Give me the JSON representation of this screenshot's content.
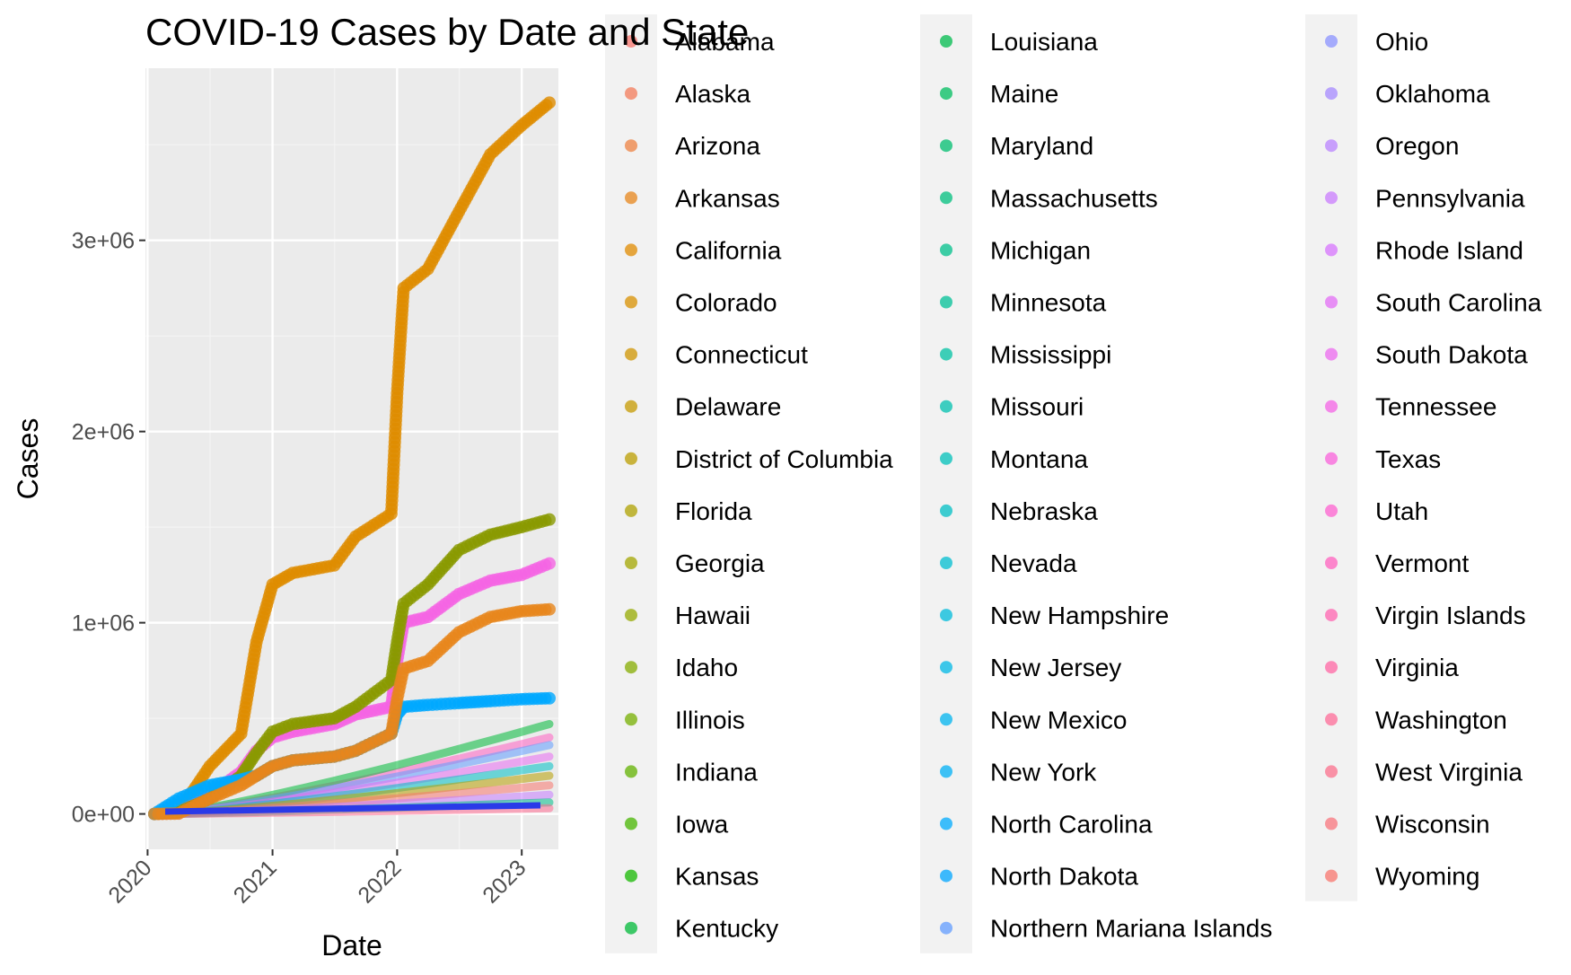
{
  "chart_data": {
    "type": "scatter",
    "title": "COVID-19 Cases by Date and State",
    "xlabel": "Date",
    "ylabel": "Cases",
    "x_tick_labels": [
      "2020",
      "2021",
      "2022",
      "2023"
    ],
    "y_tick_labels": [
      "0e+00",
      "1e+06",
      "2e+06",
      "3e+06"
    ],
    "y_ticks": [
      0,
      1000000,
      2000000,
      3000000
    ],
    "xlim": [
      "2020-01-21",
      "2023-03-23"
    ],
    "ylim": [
      -185000,
      3900000
    ],
    "grid": true,
    "legend_position": "right",
    "x_dates": [
      "2020-01-21",
      "2020-04-01",
      "2020-07-01",
      "2020-10-01",
      "2020-11-15",
      "2021-01-01",
      "2021-03-01",
      "2021-07-01",
      "2021-09-01",
      "2021-12-15",
      "2022-01-01",
      "2022-01-20",
      "2022-04-01",
      "2022-07-01",
      "2022-10-01",
      "2022-12-31",
      "2023-03-23"
    ],
    "series": [
      {
        "name": "California",
        "color": "#DE8C00",
        "values": [
          0,
          10000,
          250000,
          420000,
          900000,
          1200000,
          1260000,
          1300000,
          1450000,
          1570000,
          2200000,
          2750000,
          2850000,
          3150000,
          3450000,
          3600000,
          3720000
        ]
      },
      {
        "name": "Texas",
        "color": "#F564E3",
        "values": [
          0,
          5000,
          100000,
          220000,
          330000,
          400000,
          430000,
          470000,
          520000,
          560000,
          800000,
          1000000,
          1030000,
          1150000,
          1220000,
          1250000,
          1310000
        ]
      },
      {
        "name": "Florida",
        "color": "#8A9A00",
        "values": [
          0,
          10000,
          80000,
          200000,
          320000,
          430000,
          470000,
          500000,
          560000,
          700000,
          900000,
          1100000,
          1200000,
          1380000,
          1460000,
          1500000,
          1540000
        ]
      },
      {
        "name": "New York",
        "color": "#00A9FF",
        "values": [
          0,
          80000,
          150000,
          180000,
          200000,
          250000,
          280000,
          300000,
          330000,
          420000,
          520000,
          560000,
          570000,
          580000,
          590000,
          600000,
          605000
        ]
      },
      {
        "name": "Arizona",
        "color": "#E7861B",
        "values": [
          0,
          2000,
          80000,
          150000,
          200000,
          250000,
          280000,
          300000,
          330000,
          420000,
          600000,
          760000,
          800000,
          950000,
          1030000,
          1060000,
          1070000
        ]
      }
    ],
    "legend_columns": [
      [
        "Alabama",
        "Alaska",
        "Arizona",
        "Arkansas",
        "California",
        "Colorado",
        "Connecticut",
        "Delaware",
        "District of Columbia",
        "Florida",
        "Georgia",
        "Hawaii",
        "Idaho",
        "Illinois",
        "Indiana",
        "Iowa",
        "Kansas",
        "Kentucky"
      ],
      [
        "Louisiana",
        "Maine",
        "Maryland",
        "Massachusetts",
        "Michigan",
        "Minnesota",
        "Mississippi",
        "Missouri",
        "Montana",
        "Nebraska",
        "Nevada",
        "New Hampshire",
        "New Jersey",
        "New Mexico",
        "New York",
        "North Carolina",
        "North Dakota",
        "Northern Mariana Islands"
      ],
      [
        "Ohio",
        "Oklahoma",
        "Oregon",
        "Pennsylvania",
        "Rhode Island",
        "South Carolina",
        "South Dakota",
        "Tennessee",
        "Texas",
        "Utah",
        "Vermont",
        "Virgin Islands",
        "Virginia",
        "Washington",
        "West Virginia",
        "Wisconsin",
        "Wyoming"
      ]
    ],
    "legend_colors": [
      [
        "#F8766D",
        "#F37B59",
        "#ED8141",
        "#E7861B",
        "#E08B00",
        "#D89000",
        "#CF9400",
        "#C59900",
        "#BB9D00",
        "#AFA100",
        "#A3A500",
        "#95A900",
        "#86AC00",
        "#75AF00",
        "#61B200",
        "#47B500",
        "#16B800",
        "#00BA38"
      ],
      [
        "#00BB4E",
        "#00BD5F",
        "#00BE6F",
        "#00BF7D",
        "#00C08B",
        "#00C097",
        "#00C1A3",
        "#00C0AF",
        "#00C0BA",
        "#00BFC4",
        "#00BDD0",
        "#00BBDB",
        "#00B8E5",
        "#00B4EF",
        "#00B0F6",
        "#00ABFD",
        "#00A5FF",
        "#619CFF"
      ],
      [
        "#8B93FF",
        "#A58AFF",
        "#B983FF",
        "#CA7CFE",
        "#D774FD",
        "#E36EF6",
        "#EC69EF",
        "#F464E6",
        "#F961DB",
        "#FD61D0",
        "#FF62BF",
        "#FF64B0",
        "#FF67A4",
        "#FE6C98",
        "#FB708C",
        "#F8767D",
        "#F8766D"
      ]
    ]
  }
}
